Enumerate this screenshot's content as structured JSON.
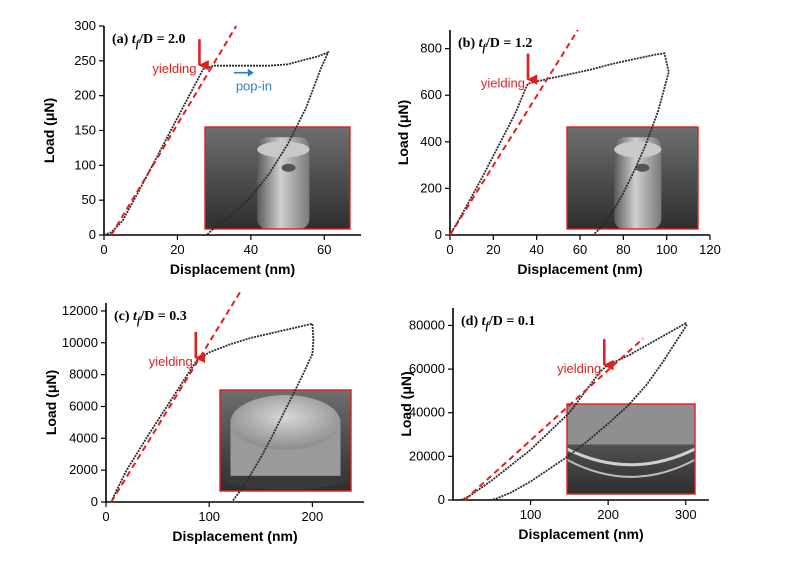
{
  "figure": {
    "colors": {
      "load_curve": "#2b2b2b",
      "fit_line": "#e02020",
      "yield_arrow": "#e02020",
      "popin": "#2a7fc4",
      "inset_border": "#e02020"
    }
  },
  "chart_data": [
    {
      "type": "line",
      "panel": "a",
      "title_prefix": "(a) ",
      "title_var": "t",
      "title_sub": "f",
      "title_rest": "/D = 2.0",
      "xlabel": "Displacement (nm)",
      "ylabel": "Load (μN)",
      "xlim": [
        0,
        70
      ],
      "ylim": [
        0,
        300
      ],
      "xticks": [
        0,
        20,
        40,
        60
      ],
      "yticks": [
        0,
        50,
        100,
        150,
        200,
        250,
        300
      ],
      "series": [
        {
          "kind": "load-curve",
          "x": [
            0,
            2,
            5,
            10,
            15,
            20,
            25,
            27,
            30,
            35,
            40,
            45,
            50,
            55,
            58,
            60,
            61,
            59,
            55,
            50,
            45,
            40,
            35,
            30,
            28
          ],
          "y": [
            0,
            4,
            20,
            68,
            118,
            168,
            218,
            238,
            243,
            243,
            243,
            243,
            245,
            252,
            256,
            260,
            262,
            238,
            182,
            130,
            88,
            55,
            30,
            10,
            0
          ]
        },
        {
          "kind": "linear-fit",
          "x": [
            2,
            36
          ],
          "y": [
            0,
            300
          ]
        }
      ],
      "annotations": [
        {
          "kind": "yield",
          "text": "yielding",
          "x": 26,
          "y": 238
        },
        {
          "kind": "pop-in",
          "text": "pop-in",
          "x": 37,
          "y": 243
        }
      ]
    },
    {
      "type": "line",
      "panel": "b",
      "title_prefix": "(b) ",
      "title_var": "t",
      "title_sub": "f",
      "title_rest": "/D = 1.2",
      "xlabel": "Displacement (nm)",
      "ylabel": "Load (μN)",
      "xlim": [
        0,
        120
      ],
      "ylim": [
        0,
        880
      ],
      "xticks": [
        0,
        20,
        40,
        60,
        80,
        100,
        120
      ],
      "yticks": [
        0,
        200,
        400,
        600,
        800
      ],
      "series": [
        {
          "kind": "load-curve",
          "x": [
            0,
            5,
            10,
            15,
            20,
            25,
            30,
            35,
            36,
            45,
            55,
            65,
            75,
            85,
            95,
            99,
            101,
            96,
            90,
            85,
            80,
            75,
            70,
            66
          ],
          "y": [
            0,
            80,
            165,
            250,
            340,
            430,
            520,
            630,
            650,
            670,
            690,
            710,
            735,
            755,
            775,
            780,
            700,
            530,
            380,
            275,
            180,
            100,
            35,
            0
          ]
        },
        {
          "kind": "linear-fit",
          "x": [
            0,
            59
          ],
          "y": [
            0,
            880
          ]
        }
      ],
      "annotations": [
        {
          "kind": "yield",
          "text": "yielding",
          "x": 36,
          "y": 650
        }
      ]
    },
    {
      "type": "line",
      "panel": "c",
      "title_prefix": "(c) ",
      "title_var": "t",
      "title_sub": "f",
      "title_rest": "/D = 0.3",
      "xlabel": "Displacement (nm)",
      "ylabel": "Load (μN)",
      "xlim": [
        0,
        250
      ],
      "ylim": [
        0,
        12500
      ],
      "xticks": [
        0,
        100,
        200
      ],
      "yticks": [
        0,
        2000,
        4000,
        6000,
        8000,
        10000,
        12000
      ],
      "series": [
        {
          "kind": "load-curve",
          "x": [
            5,
            10,
            20,
            40,
            60,
            80,
            88,
            100,
            120,
            140,
            160,
            180,
            200,
            201,
            200,
            190,
            180,
            170,
            160,
            150,
            140,
            130,
            122
          ],
          "y": [
            0,
            700,
            2000,
            4100,
            6100,
            8100,
            8900,
            9400,
            9900,
            10300,
            10600,
            10900,
            11200,
            10200,
            9300,
            7900,
            6600,
            5300,
            4000,
            2800,
            1700,
            700,
            0
          ]
        },
        {
          "kind": "linear-fit",
          "x": [
            5,
            130
          ],
          "y": [
            0,
            13200
          ]
        }
      ],
      "annotations": [
        {
          "kind": "yield",
          "text": "yielding",
          "x": 87,
          "y": 8800
        }
      ]
    },
    {
      "type": "line",
      "panel": "d",
      "title_prefix": "(d) ",
      "title_var": "t",
      "title_sub": "f",
      "title_rest": "/D = 0.1",
      "xlabel": "Displacement (nm)",
      "ylabel": "Load (μN)",
      "xlim": [
        0,
        330
      ],
      "ylim": [
        0,
        88000
      ],
      "xticks": [
        100,
        200,
        300
      ],
      "yticks": [
        0,
        20000,
        40000,
        60000,
        80000
      ],
      "series": [
        {
          "kind": "load-curve",
          "x": [
            10,
            20,
            50,
            100,
            150,
            190,
            200,
            225,
            250,
            275,
            300,
            301,
            290,
            270,
            250,
            225,
            200,
            175,
            150,
            125,
            100,
            75,
            55,
            48
          ],
          "y": [
            0,
            1500,
            9000,
            23000,
            40000,
            59000,
            62000,
            66000,
            71000,
            76000,
            81000,
            80000,
            74000,
            63000,
            53000,
            43000,
            35000,
            27500,
            20500,
            14500,
            8500,
            3500,
            500,
            0
          ]
        },
        {
          "kind": "linear-fit",
          "x": [
            15,
            245
          ],
          "y": [
            0,
            74000
          ]
        }
      ],
      "annotations": [
        {
          "kind": "yield",
          "text": "yielding",
          "x": 195,
          "y": 60000
        }
      ]
    }
  ]
}
